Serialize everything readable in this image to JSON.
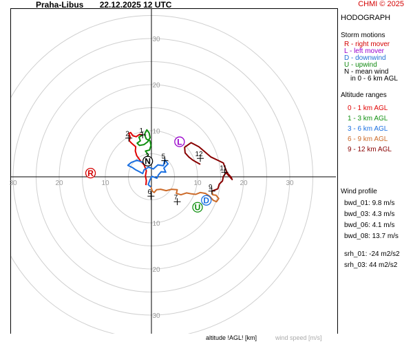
{
  "header": {
    "station": "Praha-Libus",
    "datetime": "22.12.2025 12 UTC",
    "copyright": "CHMI © 2025"
  },
  "sidebar": {
    "title": "HODOGRAPH",
    "storm_heading": "Storm motions",
    "storm_items": [
      {
        "text": "R - right mover",
        "color": "#d40000"
      },
      {
        "text": "L - left mover",
        "color": "#9900cc"
      },
      {
        "text": "D - downwind",
        "color": "#1f6fd6"
      },
      {
        "text": "U - upwind",
        "color": "#128a12"
      },
      {
        "text": "N - mean wind",
        "color": "#000000"
      },
      {
        "text": "in 0 - 6 km AGL",
        "color": "#000000"
      }
    ],
    "altitude_heading": "Altitude ranges",
    "altitude_items": [
      {
        "text": "0 - 1 km AGL",
        "color": "#e00000"
      },
      {
        "text": "1 - 3 km AGL",
        "color": "#109010"
      },
      {
        "text": "3 - 6 km AGL",
        "color": "#1a6fe0"
      },
      {
        "text": "6 - 9 km AGL",
        "color": "#cc6a28"
      },
      {
        "text": "9 - 12 km AGL",
        "color": "#880000"
      }
    ],
    "profile_heading": "Wind profile",
    "profile_items": [
      "bwd_01: 9.8 m/s",
      "bwd_03: 4.3 m/s",
      "bwd_06: 4.1 m/s",
      "bwd_08: 13.7 m/s"
    ],
    "srh_items": [
      "srh_01: -24 m2/s2",
      "srh_03: 44 m2/s2"
    ]
  },
  "footer": {
    "altitude_label": "altitude !AGL! [km]",
    "windspeed_label": "wind speed [m/s]"
  },
  "chart_data": {
    "type": "line",
    "title": "HODOGRAPH",
    "xlabel": "",
    "ylabel": "",
    "xlim": [
      -33,
      33
    ],
    "ylim": [
      -33,
      33
    ],
    "rings": [
      5,
      10,
      15,
      20,
      25,
      30,
      35
    ],
    "x_tick_labels": [
      "30",
      "20",
      "10",
      "10",
      "20",
      "30"
    ],
    "x_tick_values": [
      -30,
      -20,
      -10,
      10,
      20,
      30
    ],
    "y_tick_labels": [
      "30",
      "20",
      "10",
      "10",
      "20",
      "30"
    ],
    "y_tick_values": [
      30,
      20,
      10,
      -10,
      -20,
      -30
    ],
    "grid": true,
    "series": [
      {
        "color": "#e00000",
        "points": [
          [
            -1.2,
            -1.8
          ],
          [
            -1.1,
            -0.8
          ],
          [
            -1.3,
            0.2
          ],
          [
            -1.1,
            1.3
          ],
          [
            -1.6,
            2.6
          ],
          [
            -2.4,
            3.5
          ],
          [
            -3.2,
            4.6
          ],
          [
            -3.5,
            5.6
          ],
          [
            -3.4,
            6.5
          ],
          [
            -4.2,
            7.2
          ],
          [
            -4.8,
            7.8
          ],
          [
            -4.6,
            8.6
          ],
          [
            -4.9,
            9.4
          ],
          [
            -4.5,
            9.6
          ],
          [
            -4.0,
            8.9
          ],
          [
            -3.3,
            8.7
          ],
          [
            -2.6,
            9.2
          ],
          [
            -1.9,
            9.1
          ]
        ]
      },
      {
        "color": "#109010",
        "points": [
          [
            -1.9,
            9.1
          ],
          [
            -2.7,
            8.6
          ],
          [
            -2.4,
            7.8
          ],
          [
            -3.1,
            7.3
          ],
          [
            -2.6,
            6.8
          ],
          [
            -1.6,
            7.0
          ],
          [
            -0.8,
            7.6
          ],
          [
            -0.3,
            8.5
          ],
          [
            -0.5,
            9.5
          ],
          [
            -1.0,
            10.2
          ],
          [
            -1.5,
            9.2
          ],
          [
            -1.1,
            8.2
          ],
          [
            -0.3,
            7.8
          ],
          [
            -0.1,
            6.8
          ],
          [
            -0.4,
            5.8
          ],
          [
            -1.3,
            5.6
          ],
          [
            -0.7,
            4.8
          ],
          [
            -1.0,
            4.0
          ],
          [
            -0.6,
            3.6
          ]
        ]
      },
      {
        "color": "#1a6fe0",
        "points": [
          [
            -0.6,
            3.6
          ],
          [
            -1.8,
            3.1
          ],
          [
            -3.1,
            3.6
          ],
          [
            -4.4,
            3.1
          ],
          [
            -5.1,
            2.5
          ],
          [
            -4.1,
            2.0
          ],
          [
            -3.4,
            1.5
          ],
          [
            -2.6,
            1.1
          ],
          [
            -1.9,
            0.7
          ],
          [
            -1.6,
            1.5
          ],
          [
            -0.6,
            2.1
          ],
          [
            0.4,
            1.7
          ],
          [
            1.4,
            2.6
          ],
          [
            2.6,
            2.4
          ],
          [
            2.9,
            3.7
          ],
          [
            3.6,
            2.8
          ],
          [
            2.7,
            1.9
          ],
          [
            3.1,
            1.0
          ],
          [
            2.1,
            1.1
          ],
          [
            1.5,
            0.4
          ],
          [
            1.2,
            -0.3
          ],
          [
            0.1,
            0.1
          ],
          [
            -0.3,
            -0.6
          ],
          [
            -0.7,
            -1.7
          ],
          [
            -0.1,
            -2.2
          ]
        ]
      },
      {
        "color": "#cc6a28",
        "points": [
          [
            -0.1,
            -2.2
          ],
          [
            0.2,
            -3.1
          ],
          [
            0.6,
            -3.4
          ],
          [
            1.1,
            -2.8
          ],
          [
            2.0,
            -2.7
          ],
          [
            3.2,
            -3.0
          ],
          [
            4.4,
            -2.7
          ],
          [
            5.6,
            -2.8
          ],
          [
            5.4,
            -3.6
          ],
          [
            6.4,
            -3.9
          ],
          [
            7.6,
            -3.5
          ],
          [
            8.7,
            -3.7
          ],
          [
            9.6,
            -3.8
          ],
          [
            10.6,
            -3.4
          ],
          [
            11.7,
            -3.6
          ],
          [
            12.6,
            -4.2
          ],
          [
            13.4,
            -5.1
          ],
          [
            14.1,
            -5.4
          ],
          [
            14.6,
            -4.7
          ],
          [
            14.0,
            -4.0
          ],
          [
            13.3,
            -3.9
          ],
          [
            13.1,
            -3.1
          ]
        ]
      },
      {
        "color": "#880000",
        "points": [
          [
            13.1,
            -3.1
          ],
          [
            14.4,
            -2.6
          ],
          [
            14.7,
            -1.6
          ],
          [
            15.4,
            -0.9
          ],
          [
            15.6,
            0.1
          ],
          [
            16.2,
            0.9
          ],
          [
            17.5,
            -0.6
          ],
          [
            17.3,
            -0.1
          ],
          [
            16.4,
            0.9
          ],
          [
            16.0,
            1.9
          ],
          [
            15.6,
            3.0
          ],
          [
            14.6,
            3.5
          ],
          [
            12.9,
            4.3
          ],
          [
            11.6,
            5.4
          ],
          [
            10.3,
            6.5
          ],
          [
            8.6,
            7.4
          ],
          [
            7.2,
            6.4
          ],
          [
            7.3,
            5.2
          ],
          [
            8.1,
            4.3
          ],
          [
            9.0,
            3.6
          ],
          [
            10.6,
            2.7
          ]
        ]
      }
    ],
    "altitude_markers": [
      {
        "label": "1",
        "x": -1.9,
        "y": 9.1
      },
      {
        "label": "2",
        "x": -4.9,
        "y": 8.4
      },
      {
        "label": "3",
        "x": -0.6,
        "y": 3.6
      },
      {
        "label": "5",
        "x": 2.9,
        "y": 3.5
      },
      {
        "label": "6",
        "x": -0.1,
        "y": -4.2
      },
      {
        "label": "7",
        "x": 5.6,
        "y": -5.4
      },
      {
        "label": "9",
        "x": 13.1,
        "y": -3.1
      },
      {
        "label": "11",
        "x": 15.9,
        "y": 1.0
      },
      {
        "label": "12",
        "x": 10.6,
        "y": 4.0
      }
    ],
    "storm_markers": [
      {
        "label": "N",
        "x": -0.8,
        "y": 3.4,
        "color": "#000000"
      },
      {
        "label": "L",
        "x": 6.1,
        "y": 7.6,
        "color": "#9900cc"
      },
      {
        "label": "R",
        "x": -13.2,
        "y": 0.8,
        "color": "#d40000"
      },
      {
        "label": "D",
        "x": 11.9,
        "y": -5.1,
        "color": "#1a6fe0"
      },
      {
        "label": "U",
        "x": 10.0,
        "y": -6.6,
        "color": "#109010"
      }
    ]
  }
}
